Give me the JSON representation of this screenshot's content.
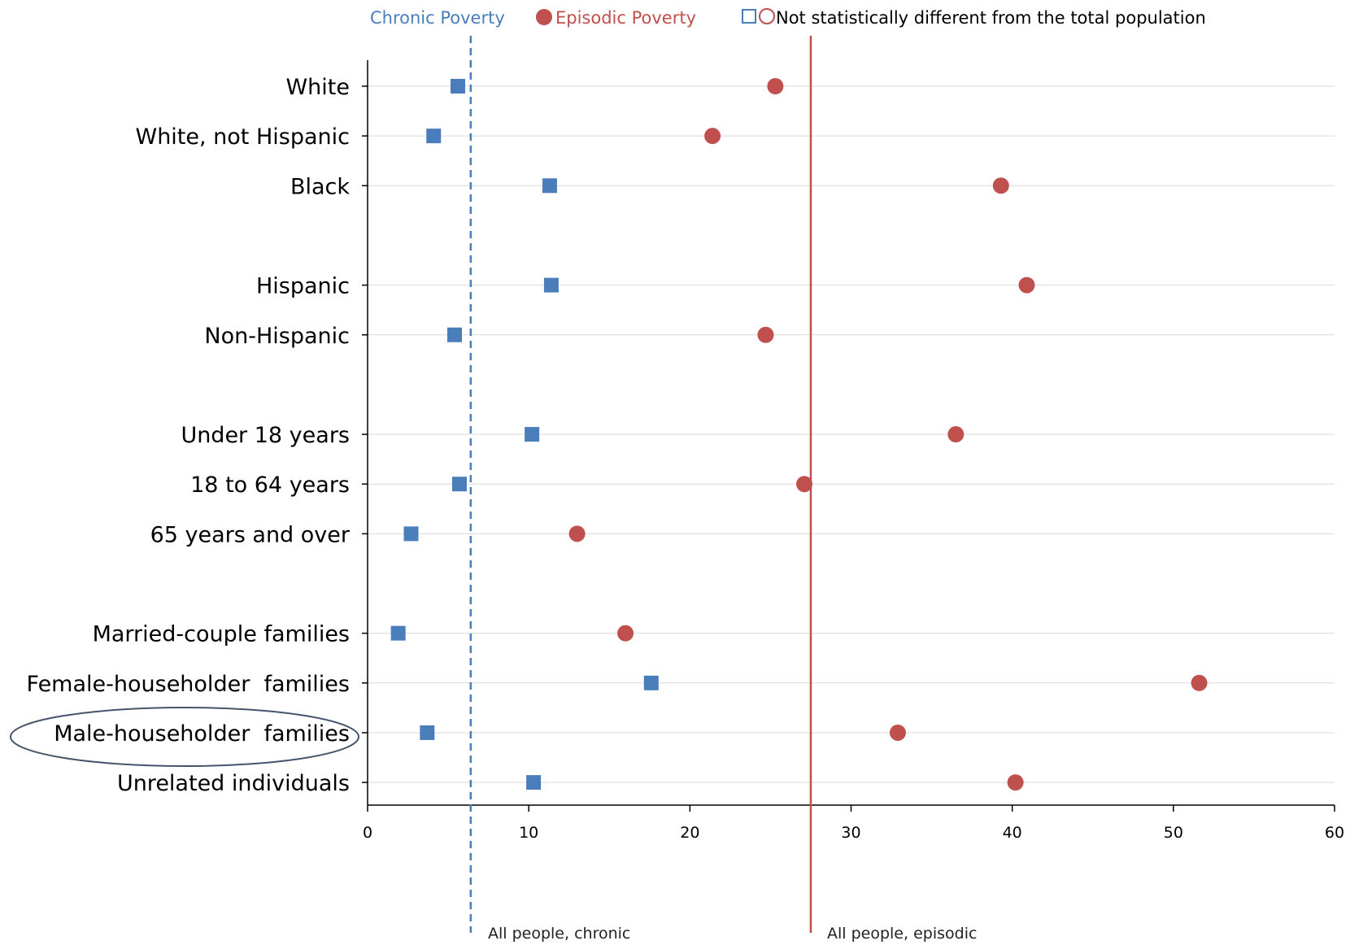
{
  "legend": {
    "chronic_label": "Chronic Poverty",
    "episodic_label": "Episodic Poverty",
    "not_diff_label": "Not statistically different from the total population"
  },
  "colors": {
    "chronic": "#4a7ebb",
    "episodic": "#c0504d",
    "grid": "#d9d9d9",
    "axis": "#000000",
    "highlight_ellipse": "#44546a"
  },
  "reference_labels": {
    "chronic": "All people, chronic",
    "episodic": "All people, episodic"
  },
  "chart_data": {
    "type": "scatter",
    "orientation": "horizontal-dot-plot",
    "categories": [
      "White",
      "White, not Hispanic",
      "Black",
      "",
      "Hispanic",
      "Non-Hispanic",
      "",
      "Under 18 years",
      "18 to 64 years",
      "65 years and over",
      "",
      "Married-couple families",
      "Female-householder  families",
      "Male-householder  families",
      "Unrelated individuals"
    ],
    "series": [
      {
        "name": "Chronic Poverty",
        "marker": "square",
        "values": [
          5.6,
          4.1,
          11.3,
          null,
          11.4,
          5.4,
          null,
          10.2,
          5.7,
          2.7,
          null,
          1.9,
          17.6,
          3.7,
          10.3
        ]
      },
      {
        "name": "Episodic Poverty",
        "marker": "circle",
        "values": [
          25.3,
          21.4,
          39.3,
          null,
          40.9,
          24.7,
          null,
          36.5,
          27.1,
          13.0,
          null,
          16.0,
          51.6,
          32.9,
          40.2
        ]
      }
    ],
    "reference_lines": [
      {
        "label": "All people, chronic",
        "value": 6.4,
        "style": "dashed"
      },
      {
        "label": "All people, episodic",
        "value": 27.5,
        "style": "solid"
      }
    ],
    "highlighted_category": "Male-householder  families",
    "xlim": [
      0,
      60
    ],
    "xticks": [
      0,
      10,
      20,
      30,
      40,
      50,
      60
    ],
    "xlabel": "",
    "ylabel": "",
    "grid": true,
    "legend_position": "top"
  }
}
